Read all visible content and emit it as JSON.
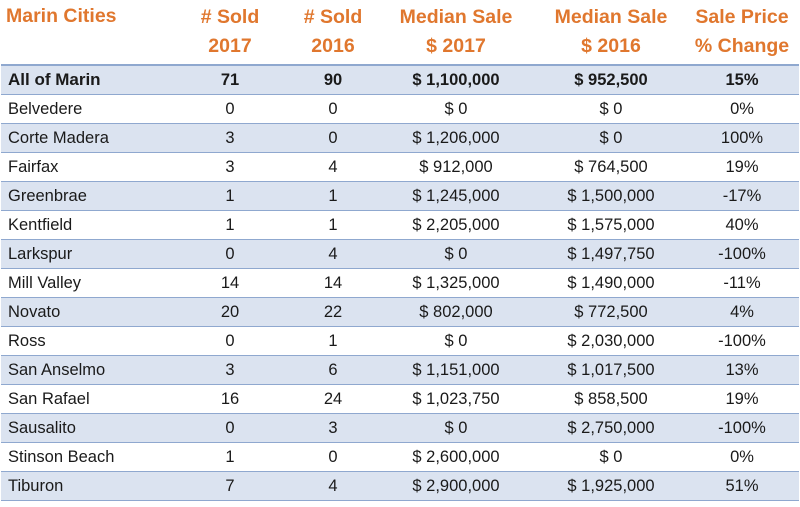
{
  "table": {
    "headers": [
      [
        "Marin Cities",
        ""
      ],
      [
        "# Sold",
        "2017"
      ],
      [
        "# Sold",
        "2016"
      ],
      [
        "Median Sale",
        "$ 2017"
      ],
      [
        "Median Sale",
        "$ 2016"
      ],
      [
        "Sale Price",
        "% Change"
      ]
    ],
    "rows": [
      [
        "All of Marin",
        "71",
        "90",
        "$ 1,100,000",
        "$ 952,500",
        "15%"
      ],
      [
        "Belvedere",
        "0",
        "0",
        "$ 0",
        "$ 0",
        "0%"
      ],
      [
        "Corte Madera",
        "3",
        "0",
        "$ 1,206,000",
        "$ 0",
        "100%"
      ],
      [
        "Fairfax",
        "3",
        "4",
        "$ 912,000",
        "$ 764,500",
        "19%"
      ],
      [
        "Greenbrae",
        "1",
        "1",
        "$ 1,245,000",
        "$ 1,500,000",
        "-17%"
      ],
      [
        "Kentfield",
        "1",
        "1",
        "$ 2,205,000",
        "$ 1,575,000",
        "40%"
      ],
      [
        "Larkspur",
        "0",
        "4",
        "$ 0",
        "$ 1,497,750",
        "-100%"
      ],
      [
        "Mill Valley",
        "14",
        "14",
        "$ 1,325,000",
        "$ 1,490,000",
        "-11%"
      ],
      [
        "Novato",
        "20",
        "22",
        "$ 802,000",
        "$ 772,500",
        "4%"
      ],
      [
        "Ross",
        "0",
        "1",
        "$ 0",
        "$ 2,030,000",
        "-100%"
      ],
      [
        "San Anselmo",
        "3",
        "6",
        "$ 1,151,000",
        "$ 1,017,500",
        "13%"
      ],
      [
        "San Rafael",
        "16",
        "24",
        "$ 1,023,750",
        "$ 858,500",
        "19%"
      ],
      [
        "Sausalito",
        "0",
        "3",
        "$ 0",
        "$ 2,750,000",
        "-100%"
      ],
      [
        "Stinson Beach",
        "1",
        "0",
        "$ 2,600,000",
        "$ 0",
        "0%"
      ],
      [
        "Tiburon",
        "7",
        "4",
        "$ 2,900,000",
        "$ 1,925,000",
        "51%"
      ]
    ]
  },
  "colors": {
    "header_text": "#e0772e",
    "row_shade": "#dbe3f0",
    "border": "#8fa8cf"
  }
}
